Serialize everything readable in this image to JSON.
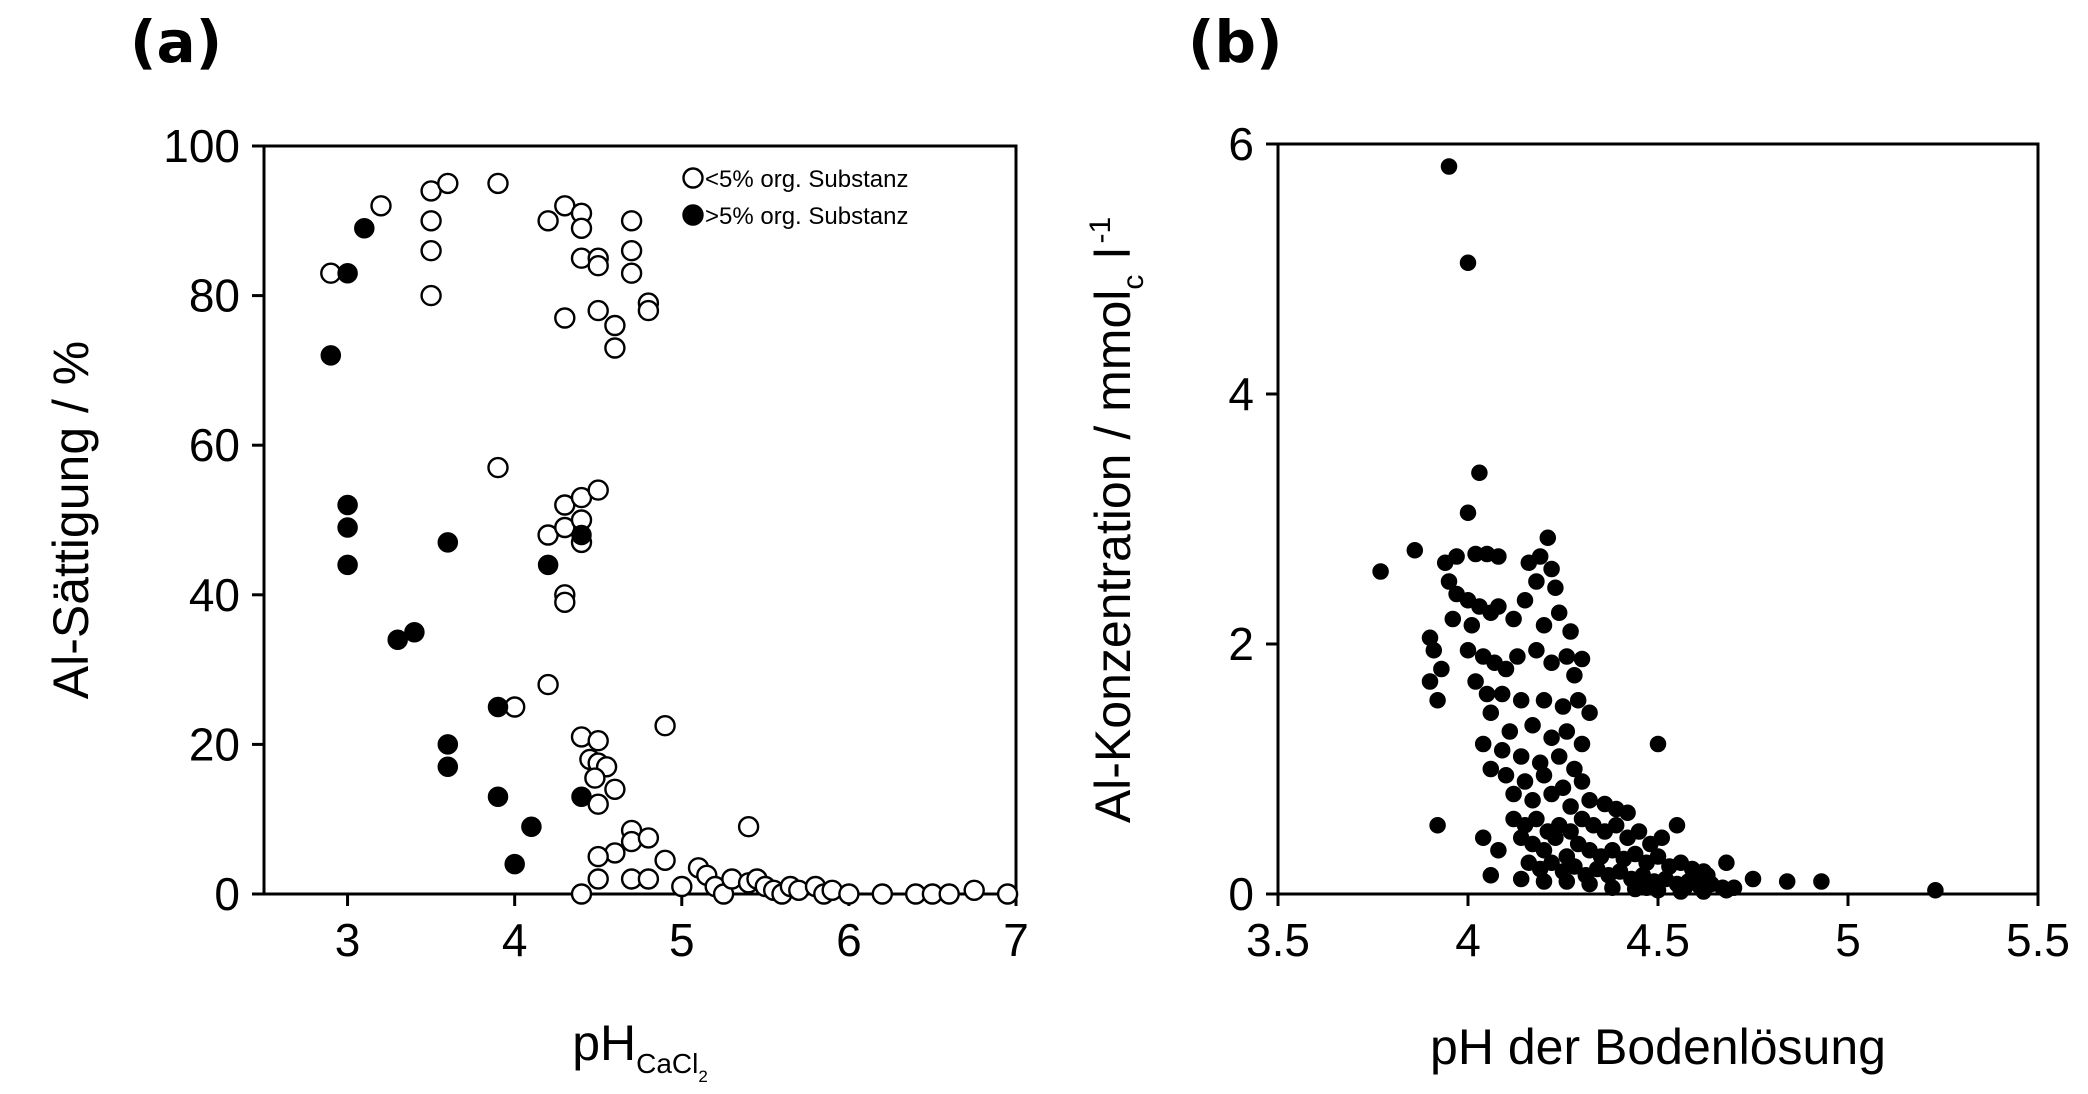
{
  "chart_data": [
    {
      "type": "scatter",
      "panel_label": "(a)",
      "xlabel": "pH",
      "xlabel_sub": "CaCl",
      "xlabel_subsub": "2",
      "ylabel": "Al-Sättigung  /  %",
      "xlim": [
        2.5,
        7
      ],
      "ylim": [
        0,
        100
      ],
      "xticks": [
        3,
        4,
        5,
        6,
        7
      ],
      "yticks": [
        0,
        20,
        40,
        60,
        80,
        100
      ],
      "legend_position": "top-right",
      "grid": false,
      "series": [
        {
          "name": "<5% org. Substanz",
          "marker": "open-circle",
          "points": [
            [
              2.9,
              83
            ],
            [
              3.2,
              92
            ],
            [
              3.5,
              94
            ],
            [
              3.6,
              95
            ],
            [
              3.5,
              90
            ],
            [
              3.5,
              86
            ],
            [
              3.5,
              80
            ],
            [
              3.9,
              95
            ],
            [
              4.2,
              90
            ],
            [
              4.3,
              92
            ],
            [
              4.4,
              91
            ],
            [
              4.4,
              89
            ],
            [
              4.4,
              85
            ],
            [
              4.5,
              85
            ],
            [
              4.5,
              84
            ],
            [
              4.3,
              77
            ],
            [
              4.5,
              78
            ],
            [
              4.6,
              76
            ],
            [
              4.6,
              73
            ],
            [
              4.7,
              90
            ],
            [
              4.7,
              86
            ],
            [
              4.7,
              83
            ],
            [
              4.8,
              79
            ],
            [
              4.8,
              78
            ],
            [
              3.9,
              57
            ],
            [
              4.2,
              48
            ],
            [
              4.3,
              52
            ],
            [
              4.4,
              53
            ],
            [
              4.5,
              54
            ],
            [
              4.3,
              49
            ],
            [
              4.4,
              50
            ],
            [
              4.4,
              47
            ],
            [
              4.3,
              40
            ],
            [
              4.3,
              39
            ],
            [
              4.2,
              28
            ],
            [
              4.0,
              25
            ],
            [
              4.4,
              21
            ],
            [
              4.5,
              20.5
            ],
            [
              4.9,
              22.5
            ],
            [
              4.45,
              18
            ],
            [
              4.5,
              17.5
            ],
            [
              4.55,
              17
            ],
            [
              4.48,
              15.5
            ],
            [
              4.6,
              14
            ],
            [
              4.5,
              12
            ],
            [
              4.7,
              8.5
            ],
            [
              4.7,
              7
            ],
            [
              4.8,
              7.5
            ],
            [
              4.6,
              5.5
            ],
            [
              4.5,
              5
            ],
            [
              4.9,
              4.5
            ],
            [
              4.5,
              2
            ],
            [
              4.7,
              2
            ],
            [
              4.8,
              2
            ],
            [
              4.4,
              0
            ],
            [
              5.0,
              1
            ],
            [
              5.1,
              3.5
            ],
            [
              5.15,
              2.5
            ],
            [
              5.2,
              1
            ],
            [
              5.25,
              0
            ],
            [
              5.3,
              2
            ],
            [
              5.4,
              9
            ],
            [
              5.4,
              1.5
            ],
            [
              5.45,
              2
            ],
            [
              5.5,
              1
            ],
            [
              5.55,
              0.5
            ],
            [
              5.6,
              0
            ],
            [
              5.65,
              1
            ],
            [
              5.7,
              0.5
            ],
            [
              5.8,
              1
            ],
            [
              5.85,
              0
            ],
            [
              5.9,
              0.5
            ],
            [
              6.0,
              0
            ],
            [
              6.2,
              0
            ],
            [
              6.4,
              0
            ],
            [
              6.5,
              0
            ],
            [
              6.6,
              0
            ],
            [
              6.75,
              0.5
            ],
            [
              6.95,
              0
            ]
          ]
        },
        {
          "name": ">5% org. Substanz",
          "marker": "filled-circle",
          "points": [
            [
              3.1,
              89
            ],
            [
              3.0,
              83
            ],
            [
              2.9,
              72
            ],
            [
              3.0,
              52
            ],
            [
              3.0,
              49
            ],
            [
              3.0,
              44
            ],
            [
              3.6,
              47
            ],
            [
              4.2,
              44
            ],
            [
              4.4,
              48
            ],
            [
              3.3,
              34
            ],
            [
              3.4,
              35
            ],
            [
              3.9,
              25
            ],
            [
              3.6,
              20
            ],
            [
              3.6,
              17
            ],
            [
              3.9,
              13
            ],
            [
              4.1,
              9
            ],
            [
              4.0,
              4
            ],
            [
              4.4,
              13
            ]
          ]
        }
      ]
    },
    {
      "type": "scatter",
      "panel_label": "(b)",
      "xlabel": "pH der Bodenlösung",
      "ylabel_main": "Al-Konzentration  /  mmol",
      "ylabel_sub": "c",
      "ylabel_unit": "l",
      "ylabel_sup": "-1",
      "xlim": [
        3.5,
        5.5
      ],
      "ylim": [
        0,
        6
      ],
      "xticks": [
        "3.5",
        "4",
        "4.5",
        "5",
        "5.5"
      ],
      "yticks": [
        0,
        2,
        4,
        6
      ],
      "grid": false,
      "series": [
        {
          "marker": "filled-circle",
          "points": [
            [
              3.95,
              5.82
            ],
            [
              4.0,
              5.05
            ],
            [
              4.03,
              3.37
            ],
            [
              4.0,
              3.05
            ],
            [
              3.86,
              2.75
            ],
            [
              3.77,
              2.58
            ],
            [
              3.94,
              2.65
            ],
            [
              3.97,
              2.7
            ],
            [
              4.02,
              2.72
            ],
            [
              4.05,
              2.72
            ],
            [
              4.08,
              2.7
            ],
            [
              4.21,
              2.85
            ],
            [
              4.19,
              2.7
            ],
            [
              4.16,
              2.65
            ],
            [
              4.22,
              2.6
            ],
            [
              4.18,
              2.5
            ],
            [
              4.23,
              2.45
            ],
            [
              3.95,
              2.5
            ],
            [
              3.97,
              2.4
            ],
            [
              4.0,
              2.35
            ],
            [
              4.03,
              2.3
            ],
            [
              4.06,
              2.25
            ],
            [
              3.96,
              2.2
            ],
            [
              4.01,
              2.15
            ],
            [
              4.08,
              2.3
            ],
            [
              4.12,
              2.2
            ],
            [
              4.15,
              2.35
            ],
            [
              4.2,
              2.15
            ],
            [
              4.24,
              2.25
            ],
            [
              4.27,
              2.1
            ],
            [
              3.9,
              2.05
            ],
            [
              3.91,
              1.95
            ],
            [
              3.93,
              1.8
            ],
            [
              3.9,
              1.7
            ],
            [
              3.92,
              1.55
            ],
            [
              4.0,
              1.95
            ],
            [
              4.04,
              1.9
            ],
            [
              4.07,
              1.85
            ],
            [
              4.1,
              1.8
            ],
            [
              4.13,
              1.9
            ],
            [
              4.18,
              1.95
            ],
            [
              4.22,
              1.85
            ],
            [
              4.26,
              1.9
            ],
            [
              4.3,
              1.88
            ],
            [
              4.28,
              1.75
            ],
            [
              4.02,
              1.7
            ],
            [
              4.05,
              1.6
            ],
            [
              4.09,
              1.6
            ],
            [
              4.14,
              1.55
            ],
            [
              4.2,
              1.55
            ],
            [
              4.25,
              1.5
            ],
            [
              4.29,
              1.55
            ],
            [
              4.32,
              1.45
            ],
            [
              4.06,
              1.45
            ],
            [
              4.11,
              1.3
            ],
            [
              4.17,
              1.35
            ],
            [
              4.22,
              1.25
            ],
            [
              4.26,
              1.3
            ],
            [
              4.3,
              1.2
            ],
            [
              4.04,
              1.2
            ],
            [
              4.09,
              1.15
            ],
            [
              4.14,
              1.1
            ],
            [
              4.19,
              1.05
            ],
            [
              4.24,
              1.1
            ],
            [
              4.28,
              1.0
            ],
            [
              4.5,
              1.2
            ],
            [
              4.06,
              1.0
            ],
            [
              4.1,
              0.95
            ],
            [
              4.15,
              0.9
            ],
            [
              4.2,
              0.95
            ],
            [
              4.25,
              0.85
            ],
            [
              4.3,
              0.9
            ],
            [
              4.12,
              0.8
            ],
            [
              4.17,
              0.75
            ],
            [
              4.22,
              0.8
            ],
            [
              4.27,
              0.7
            ],
            [
              4.32,
              0.75
            ],
            [
              4.36,
              0.72
            ],
            [
              4.39,
              0.68
            ],
            [
              4.42,
              0.65
            ],
            [
              3.92,
              0.55
            ],
            [
              4.12,
              0.6
            ],
            [
              4.15,
              0.55
            ],
            [
              4.18,
              0.6
            ],
            [
              4.21,
              0.5
            ],
            [
              4.24,
              0.55
            ],
            [
              4.27,
              0.5
            ],
            [
              4.3,
              0.6
            ],
            [
              4.33,
              0.55
            ],
            [
              4.36,
              0.5
            ],
            [
              4.39,
              0.55
            ],
            [
              4.42,
              0.45
            ],
            [
              4.45,
              0.5
            ],
            [
              4.48,
              0.4
            ],
            [
              4.51,
              0.45
            ],
            [
              4.55,
              0.55
            ],
            [
              4.14,
              0.45
            ],
            [
              4.17,
              0.4
            ],
            [
              4.2,
              0.35
            ],
            [
              4.23,
              0.45
            ],
            [
              4.26,
              0.3
            ],
            [
              4.29,
              0.4
            ],
            [
              4.32,
              0.35
            ],
            [
              4.35,
              0.3
            ],
            [
              4.38,
              0.35
            ],
            [
              4.41,
              0.28
            ],
            [
              4.44,
              0.32
            ],
            [
              4.47,
              0.25
            ],
            [
              4.5,
              0.3
            ],
            [
              4.53,
              0.22
            ],
            [
              4.56,
              0.25
            ],
            [
              4.59,
              0.2
            ],
            [
              4.62,
              0.18
            ],
            [
              4.04,
              0.45
            ],
            [
              4.08,
              0.35
            ],
            [
              4.16,
              0.25
            ],
            [
              4.19,
              0.2
            ],
            [
              4.22,
              0.25
            ],
            [
              4.25,
              0.18
            ],
            [
              4.28,
              0.22
            ],
            [
              4.31,
              0.15
            ],
            [
              4.34,
              0.2
            ],
            [
              4.37,
              0.15
            ],
            [
              4.4,
              0.18
            ],
            [
              4.43,
              0.12
            ],
            [
              4.46,
              0.15
            ],
            [
              4.49,
              0.1
            ],
            [
              4.52,
              0.12
            ],
            [
              4.55,
              0.08
            ],
            [
              4.58,
              0.1
            ],
            [
              4.61,
              0.06
            ],
            [
              4.64,
              0.08
            ],
            [
              4.67,
              0.05
            ],
            [
              4.7,
              0.05
            ],
            [
              4.06,
              0.15
            ],
            [
              4.14,
              0.12
            ],
            [
              4.2,
              0.1
            ],
            [
              4.26,
              0.1
            ],
            [
              4.32,
              0.08
            ],
            [
              4.38,
              0.05
            ],
            [
              4.44,
              0.04
            ],
            [
              4.5,
              0.03
            ],
            [
              4.56,
              0.02
            ],
            [
              4.62,
              0.02
            ],
            [
              4.68,
              0.03
            ],
            [
              4.75,
              0.12
            ],
            [
              4.84,
              0.1
            ],
            [
              4.93,
              0.1
            ],
            [
              5.23,
              0.03
            ],
            [
              4.68,
              0.25
            ],
            [
              4.63,
              0.15
            ],
            [
              4.57,
              0.05
            ],
            [
              4.6,
              0.1
            ],
            [
              4.47,
              0.05
            ]
          ]
        }
      ]
    }
  ]
}
